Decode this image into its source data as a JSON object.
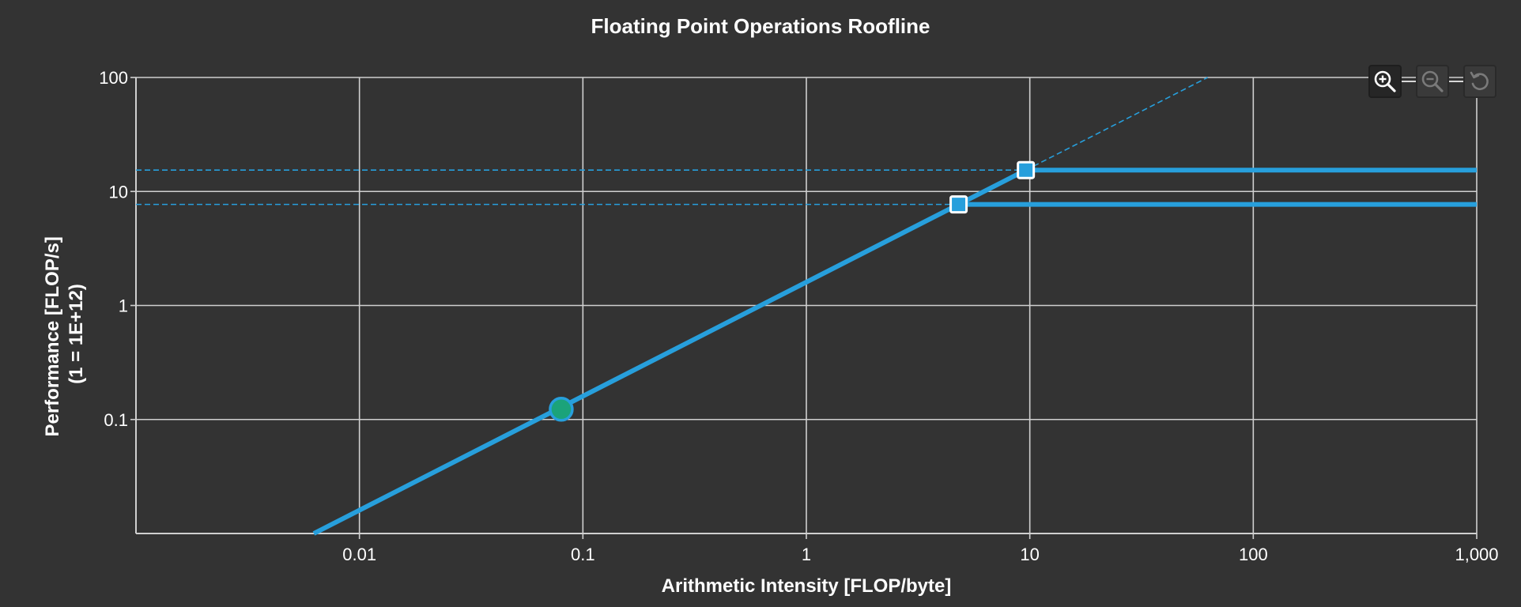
{
  "chart_data": {
    "type": "line",
    "title": "Floating Point Operations Roofline",
    "xlabel": "Arithmetic Intensity [FLOP/byte]",
    "ylabel_lines": [
      "Performance [FLOP/s]",
      "(1 = 1E+12)"
    ],
    "x_scale": "log",
    "y_scale": "log",
    "xlim": [
      0.001,
      1000
    ],
    "ylim": [
      0.01,
      100
    ],
    "x_ticks": [
      {
        "value": 0.01,
        "label": "0.01"
      },
      {
        "value": 0.1,
        "label": "0.1"
      },
      {
        "value": 1,
        "label": "1"
      },
      {
        "value": 10,
        "label": "10"
      },
      {
        "value": 100,
        "label": "100"
      },
      {
        "value": 1000,
        "label": "1,000"
      }
    ],
    "y_ticks": [
      {
        "value": 0.1,
        "label": "0.1"
      },
      {
        "value": 1,
        "label": "1"
      },
      {
        "value": 10,
        "label": "10"
      },
      {
        "value": 100,
        "label": "100"
      }
    ],
    "grid": true,
    "memory_bandwidth_slope": 1.6,
    "compute_roofs": [
      {
        "ridge_x": 9.6,
        "peak": 15.4
      },
      {
        "ridge_x": 4.8,
        "peak": 7.7
      }
    ],
    "kernel_points": [
      {
        "x": 0.08,
        "y": 0.123
      }
    ],
    "colors": {
      "background": "#333333",
      "roof": "#279fdc",
      "grid": "#d0d0d0",
      "point": "#1ba37a",
      "text": "#ffffff"
    }
  },
  "toolbar": {
    "buttons": [
      {
        "icon": "zoom-in-icon",
        "state": "active"
      },
      {
        "icon": "zoom-out-icon",
        "state": "disabled"
      },
      {
        "icon": "reset-icon",
        "state": "disabled"
      }
    ]
  }
}
